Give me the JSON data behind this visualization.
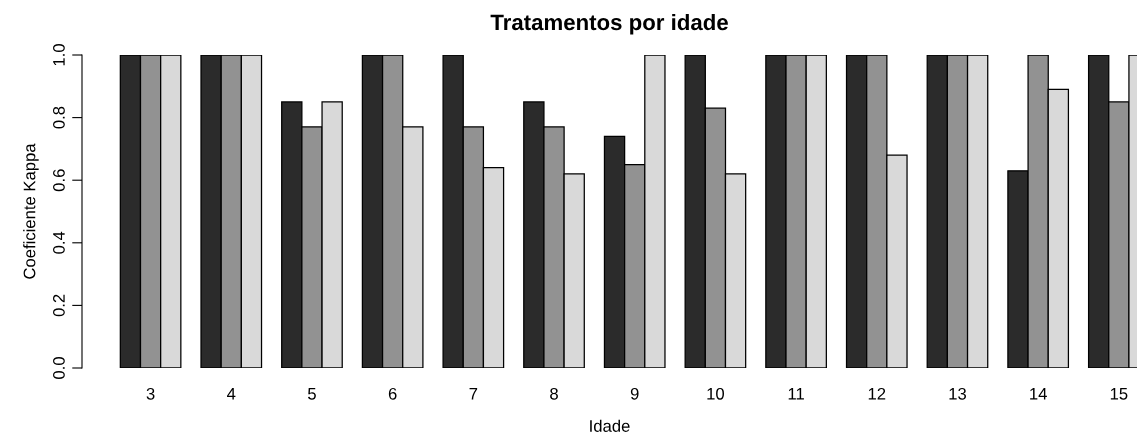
{
  "chart_data": {
    "type": "bar",
    "title": "Tratamentos por idade",
    "xlabel": "Idade",
    "ylabel": "Coeficiente Kappa",
    "categories": [
      "3",
      "4",
      "5",
      "6",
      "7",
      "8",
      "9",
      "10",
      "11",
      "12",
      "13",
      "14",
      "15"
    ],
    "series": [
      {
        "color": "#2b2b2b",
        "values": [
          1.0,
          1.0,
          0.85,
          1.0,
          1.0,
          0.85,
          0.74,
          1.0,
          1.0,
          1.0,
          1.0,
          0.63,
          1.0
        ]
      },
      {
        "color": "#929292",
        "values": [
          1.0,
          1.0,
          0.77,
          1.0,
          0.77,
          0.77,
          0.65,
          0.83,
          1.0,
          1.0,
          1.0,
          1.0,
          0.85
        ]
      },
      {
        "color": "#d9d9d9",
        "values": [
          1.0,
          1.0,
          0.85,
          0.77,
          0.64,
          0.62,
          1.0,
          0.62,
          1.0,
          0.68,
          1.0,
          0.89,
          1.0
        ]
      }
    ],
    "ylim": [
      0,
      1
    ],
    "yticks": [
      {
        "value": 0,
        "label": "0.0"
      },
      {
        "value": 0.2,
        "label": "0.2"
      },
      {
        "value": 0.4,
        "label": "0.4"
      },
      {
        "value": 0.6,
        "label": "0.6"
      },
      {
        "value": 0.8,
        "label": "0.8"
      },
      {
        "value": 1,
        "label": "1.0"
      }
    ],
    "grid": false,
    "legend": false
  }
}
